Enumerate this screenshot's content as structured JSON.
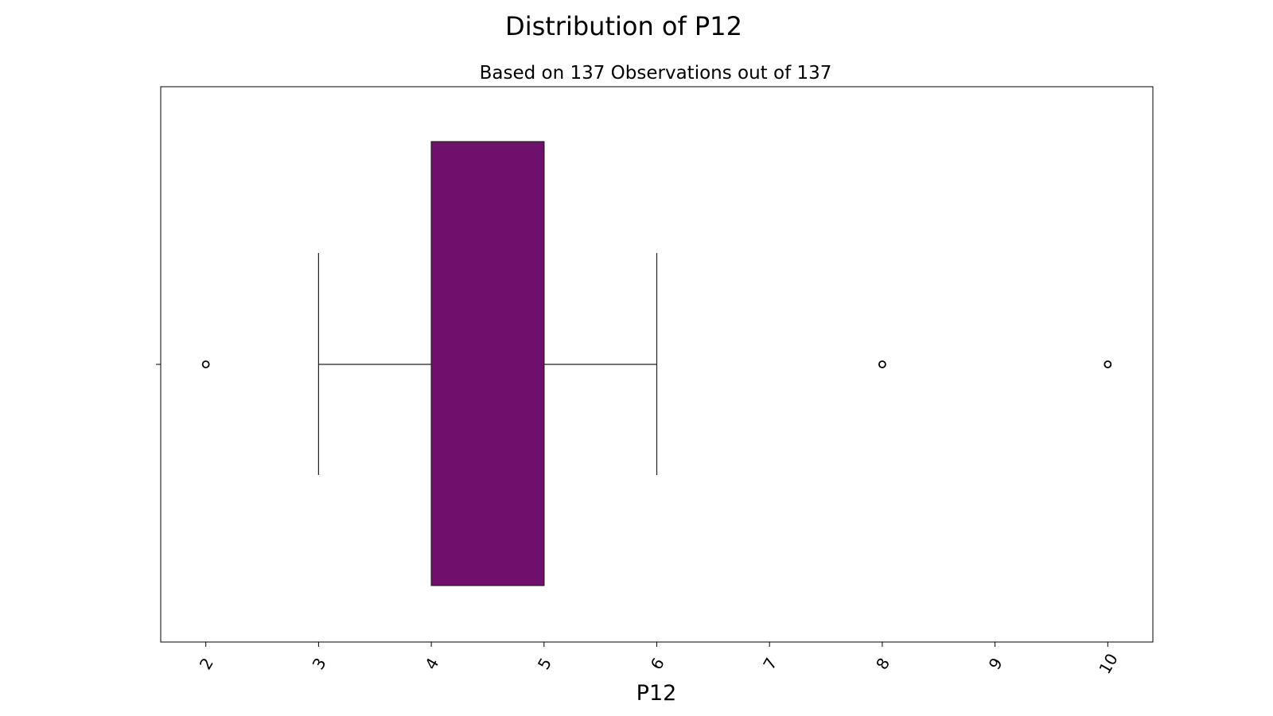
{
  "chart_data": {
    "type": "box",
    "title": "Distribution of P12",
    "subtitle": "Based on 137 Observations out of 137",
    "xlabel": "P12",
    "ylabel": "",
    "xlim": [
      1.6,
      10.4
    ],
    "xticks": [
      2,
      3,
      4,
      5,
      6,
      7,
      8,
      9,
      10
    ],
    "tick_labels": [
      "2",
      "3",
      "4",
      "5",
      "6",
      "7",
      "8",
      "9",
      "10"
    ],
    "orientation": "horizontal",
    "grid": false,
    "box": {
      "whisker_low": 3,
      "q1": 4,
      "median": 5,
      "q3": 5,
      "whisker_high": 6,
      "outliers": [
        2,
        8,
        10
      ]
    },
    "colors": {
      "box_fill": "#6f106d",
      "line": "#222222"
    }
  }
}
